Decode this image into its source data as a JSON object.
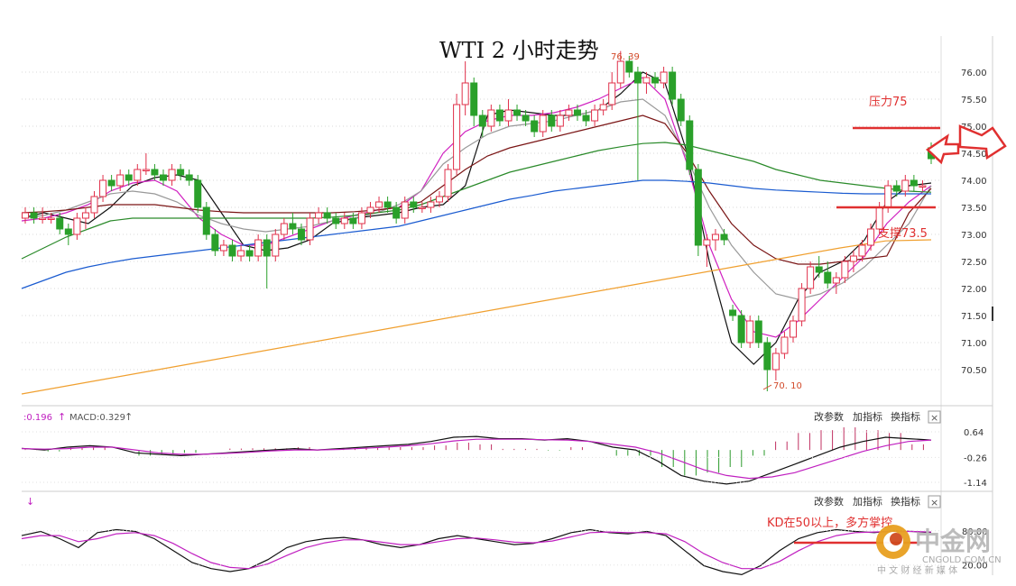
{
  "chart_data": {
    "type": "candlestick",
    "title": "WTI 2 小时走势",
    "price_axis": {
      "ylim": [
        70.0,
        76.6
      ],
      "ticks": [
        "76.00",
        "75.50",
        "75.00",
        "74.50",
        "74.00",
        "73.50",
        "73.00",
        "72.50",
        "72.00",
        "71.50",
        "71.00",
        "70.50"
      ]
    },
    "extremes": {
      "high_label": "76. 39",
      "high_value": 76.39,
      "low_label": "70. 10",
      "low_value": 70.1
    },
    "candles": [
      [
        73.3,
        73.5,
        73.2,
        73.4
      ],
      [
        73.4,
        73.5,
        73.2,
        73.3
      ],
      [
        73.3,
        73.5,
        73.2,
        73.3
      ],
      [
        73.3,
        73.4,
        73.2,
        73.3
      ],
      [
        73.3,
        73.4,
        73.0,
        73.1
      ],
      [
        73.1,
        73.2,
        72.8,
        73.0
      ],
      [
        73.0,
        73.4,
        72.9,
        73.3
      ],
      [
        73.3,
        73.5,
        73.1,
        73.4
      ],
      [
        73.4,
        73.8,
        73.3,
        73.7
      ],
      [
        73.7,
        74.1,
        73.6,
        74.0
      ],
      [
        74.0,
        74.1,
        73.8,
        73.9
      ],
      [
        73.9,
        74.2,
        73.8,
        74.1
      ],
      [
        74.1,
        74.2,
        73.9,
        74.0
      ],
      [
        74.0,
        74.3,
        73.9,
        74.2
      ],
      [
        74.2,
        74.5,
        74.1,
        74.2
      ],
      [
        74.2,
        74.3,
        74.0,
        74.1
      ],
      [
        74.1,
        74.2,
        73.9,
        74.0
      ],
      [
        74.0,
        74.3,
        73.9,
        74.2
      ],
      [
        74.2,
        74.3,
        74.0,
        74.1
      ],
      [
        74.1,
        74.2,
        73.9,
        74.0
      ],
      [
        74.0,
        74.1,
        73.4,
        73.5
      ],
      [
        73.5,
        73.6,
        72.9,
        73.0
      ],
      [
        73.0,
        73.1,
        72.6,
        72.7
      ],
      [
        72.7,
        72.9,
        72.6,
        72.8
      ],
      [
        72.8,
        72.9,
        72.5,
        72.6
      ],
      [
        72.6,
        72.8,
        72.5,
        72.7
      ],
      [
        72.7,
        72.8,
        72.5,
        72.6
      ],
      [
        72.6,
        73.0,
        72.5,
        72.9
      ],
      [
        72.9,
        73.0,
        72.0,
        72.6
      ],
      [
        72.6,
        73.1,
        72.5,
        73.0
      ],
      [
        73.0,
        73.3,
        72.9,
        73.2
      ],
      [
        73.2,
        73.4,
        73.0,
        73.1
      ],
      [
        73.1,
        73.2,
        72.8,
        72.9
      ],
      [
        72.9,
        73.4,
        72.8,
        73.3
      ],
      [
        73.3,
        73.5,
        73.2,
        73.4
      ],
      [
        73.4,
        73.5,
        73.2,
        73.3
      ],
      [
        73.3,
        73.4,
        73.1,
        73.2
      ],
      [
        73.2,
        73.4,
        73.1,
        73.3
      ],
      [
        73.3,
        73.4,
        73.1,
        73.2
      ],
      [
        73.2,
        73.5,
        73.1,
        73.4
      ],
      [
        73.4,
        73.6,
        73.3,
        73.5
      ],
      [
        73.5,
        73.7,
        73.4,
        73.6
      ],
      [
        73.6,
        73.7,
        73.4,
        73.5
      ],
      [
        73.5,
        73.6,
        73.2,
        73.3
      ],
      [
        73.3,
        73.7,
        73.2,
        73.6
      ],
      [
        73.6,
        73.7,
        73.4,
        73.5
      ],
      [
        73.5,
        73.6,
        73.4,
        73.5
      ],
      [
        73.5,
        73.7,
        73.4,
        73.6
      ],
      [
        73.6,
        73.8,
        73.5,
        73.7
      ],
      [
        73.7,
        74.3,
        73.6,
        74.2
      ],
      [
        74.2,
        75.6,
        74.1,
        75.4
      ],
      [
        75.4,
        76.2,
        75.2,
        75.8
      ],
      [
        75.8,
        75.9,
        75.0,
        75.2
      ],
      [
        75.2,
        75.3,
        74.8,
        75.0
      ],
      [
        75.0,
        75.4,
        74.9,
        75.3
      ],
      [
        75.3,
        75.4,
        75.0,
        75.1
      ],
      [
        75.1,
        75.5,
        75.0,
        75.3
      ],
      [
        75.3,
        75.4,
        75.1,
        75.2
      ],
      [
        75.2,
        75.3,
        75.0,
        75.1
      ],
      [
        75.1,
        75.2,
        74.8,
        74.9
      ],
      [
        74.9,
        75.3,
        74.8,
        75.2
      ],
      [
        75.2,
        75.3,
        74.9,
        75.0
      ],
      [
        75.0,
        75.3,
        74.9,
        75.2
      ],
      [
        75.2,
        75.4,
        75.1,
        75.3
      ],
      [
        75.3,
        75.4,
        75.1,
        75.2
      ],
      [
        75.2,
        75.3,
        75.0,
        75.1
      ],
      [
        75.1,
        75.4,
        75.0,
        75.3
      ],
      [
        75.3,
        75.5,
        75.2,
        75.4
      ],
      [
        75.4,
        76.0,
        75.3,
        75.8
      ],
      [
        75.8,
        76.39,
        75.7,
        76.2
      ],
      [
        76.2,
        76.3,
        75.9,
        76.0
      ],
      [
        76.0,
        76.1,
        74.0,
        75.8
      ],
      [
        75.8,
        76.0,
        75.6,
        75.9
      ],
      [
        75.9,
        76.0,
        75.7,
        75.8
      ],
      [
        75.8,
        76.1,
        75.7,
        76.0
      ],
      [
        76.0,
        76.1,
        75.4,
        75.5
      ],
      [
        75.5,
        75.6,
        75.0,
        75.1
      ],
      [
        75.1,
        75.2,
        74.1,
        74.2
      ],
      [
        74.2,
        74.3,
        72.6,
        72.8
      ],
      [
        72.8,
        73.0,
        72.4,
        72.9
      ],
      [
        72.9,
        73.1,
        72.7,
        73.0
      ],
      [
        73.0,
        73.1,
        72.8,
        72.9
      ],
      [
        71.6,
        71.7,
        71.4,
        71.5
      ],
      [
        71.5,
        71.6,
        70.9,
        71.0
      ],
      [
        71.0,
        71.5,
        70.9,
        71.4
      ],
      [
        71.4,
        71.5,
        70.9,
        71.0
      ],
      [
        71.0,
        71.1,
        70.1,
        70.5
      ],
      [
        70.5,
        70.9,
        70.3,
        70.8
      ],
      [
        70.8,
        71.2,
        70.7,
        71.1
      ],
      [
        71.1,
        71.5,
        71.0,
        71.4
      ],
      [
        71.4,
        72.1,
        71.3,
        72.0
      ],
      [
        72.0,
        72.5,
        71.9,
        72.4
      ],
      [
        72.4,
        72.6,
        72.2,
        72.3
      ],
      [
        72.3,
        72.5,
        72.0,
        72.1
      ],
      [
        72.1,
        72.3,
        71.9,
        72.2
      ],
      [
        72.2,
        72.6,
        72.1,
        72.5
      ],
      [
        72.5,
        72.7,
        72.3,
        72.6
      ],
      [
        72.6,
        72.9,
        72.5,
        72.8
      ],
      [
        72.8,
        73.2,
        72.7,
        73.1
      ],
      [
        73.1,
        73.6,
        73.0,
        73.5
      ],
      [
        73.5,
        74.0,
        73.4,
        73.9
      ],
      [
        73.9,
        74.0,
        73.7,
        73.8
      ],
      [
        73.8,
        74.1,
        73.7,
        74.0
      ],
      [
        74.0,
        74.1,
        73.8,
        73.9
      ],
      [
        73.9,
        74.0,
        73.8,
        73.9
      ],
      [
        74.6,
        74.7,
        74.3,
        74.4
      ]
    ],
    "overlays": [
      {
        "color": "#111111",
        "values": [
          73.3,
          73.4,
          73.3,
          73.2,
          73.5,
          73.9,
          74.05,
          74.1,
          74.0,
          73.4,
          72.8,
          72.7,
          72.75,
          72.9,
          73.2,
          73.3,
          73.35,
          73.4,
          73.5,
          73.55,
          73.9,
          75.2,
          75.3,
          75.25,
          75.2,
          75.2,
          75.3,
          75.6,
          76.0,
          75.8,
          74.5,
          72.5,
          71.0,
          70.6,
          71.0,
          71.8,
          72.3,
          72.5,
          72.9,
          73.6,
          73.9,
          73.95
        ]
      },
      {
        "color": "#d020c0",
        "values": [
          73.25,
          73.3,
          73.4,
          73.55,
          73.8,
          73.95,
          74.0,
          73.8,
          73.3,
          73.0,
          72.8,
          72.8,
          72.95,
          73.1,
          73.25,
          73.35,
          73.45,
          73.5,
          73.8,
          74.5,
          74.9,
          75.1,
          75.2,
          75.2,
          75.25,
          75.35,
          75.5,
          75.7,
          75.9,
          75.5,
          74.3,
          72.8,
          71.8,
          71.2,
          71.1,
          71.4,
          71.8,
          72.2,
          72.6,
          73.2,
          73.6,
          73.9
        ]
      },
      {
        "color": "#999999",
        "values": [
          73.3,
          73.35,
          73.45,
          73.6,
          73.75,
          73.8,
          73.75,
          73.6,
          73.35,
          73.2,
          73.1,
          73.05,
          73.1,
          73.15,
          73.25,
          73.3,
          73.4,
          73.55,
          73.8,
          74.3,
          74.6,
          74.85,
          75.0,
          75.05,
          75.1,
          75.2,
          75.3,
          75.45,
          75.5,
          75.2,
          74.4,
          73.5,
          72.8,
          72.3,
          71.9,
          71.8,
          71.9,
          72.1,
          72.4,
          72.8,
          73.2,
          73.9
        ]
      },
      {
        "color": "#7a1515",
        "values": [
          73.4,
          73.42,
          73.45,
          73.5,
          73.55,
          73.55,
          73.55,
          73.5,
          73.45,
          73.42,
          73.4,
          73.4,
          73.4,
          73.4,
          73.4,
          73.42,
          73.45,
          73.5,
          73.6,
          73.9,
          74.2,
          74.45,
          74.6,
          74.7,
          74.8,
          74.9,
          75.0,
          75.1,
          75.2,
          75.05,
          74.5,
          73.8,
          73.2,
          72.8,
          72.55,
          72.45,
          72.45,
          72.5,
          72.55,
          72.6,
          73.4,
          73.85
        ]
      },
      {
        "color": "#2a8a2a",
        "values": [
          72.55,
          72.75,
          72.95,
          73.1,
          73.25,
          73.3,
          73.3,
          73.3,
          73.3,
          73.3,
          73.3,
          73.3,
          73.3,
          73.3,
          73.32,
          73.35,
          73.4,
          73.45,
          73.55,
          73.7,
          73.85,
          74.0,
          74.15,
          74.25,
          74.35,
          74.45,
          74.55,
          74.62,
          74.68,
          74.7,
          74.65,
          74.55,
          74.45,
          74.35,
          74.2,
          74.1,
          74.0,
          73.95,
          73.9,
          73.85,
          73.8,
          73.78
        ]
      },
      {
        "color": "#1a5bd0",
        "values": [
          72.0,
          72.15,
          72.3,
          72.4,
          72.48,
          72.55,
          72.6,
          72.65,
          72.7,
          72.75,
          72.8,
          72.85,
          72.9,
          72.95,
          73.0,
          73.05,
          73.1,
          73.15,
          73.25,
          73.35,
          73.45,
          73.55,
          73.65,
          73.72,
          73.8,
          73.85,
          73.9,
          73.95,
          74.0,
          74.0,
          73.98,
          73.95,
          73.9,
          73.85,
          73.82,
          73.8,
          73.78,
          73.76,
          73.75,
          73.75,
          73.75,
          73.75
        ]
      },
      {
        "color": "#f0a030",
        "values": [
          70.05,
          70.2,
          70.35,
          70.5,
          70.65,
          70.8,
          70.95,
          71.1,
          71.25,
          71.4,
          71.55,
          71.7,
          71.85,
          72.0,
          72.15,
          72.3,
          72.45,
          72.6,
          72.75,
          72.88,
          72.9
        ]
      }
    ],
    "annotations": [
      {
        "label": "压力75",
        "value": 75.0,
        "kind": "resistance"
      },
      {
        "label": "支撑73.5",
        "value": 73.5,
        "kind": "support"
      }
    ],
    "macd": {
      "header_left": ":0.196",
      "header_macd": "MACD:0.329",
      "ylim": [
        -1.3,
        0.8
      ],
      "ticks": [
        "0.64",
        "-0.26",
        "-1.14"
      ],
      "dif": [
        0.06,
        0.0,
        0.1,
        0.15,
        0.1,
        -0.1,
        -0.15,
        -0.2,
        -0.15,
        -0.1,
        -0.05,
        0.0,
        0.05,
        0.0,
        0.05,
        0.1,
        0.15,
        0.2,
        0.3,
        0.45,
        0.48,
        0.4,
        0.4,
        0.35,
        0.4,
        0.3,
        0.1,
        0.0,
        -0.4,
        -0.9,
        -1.1,
        -1.2,
        -1.1,
        -0.8,
        -0.5,
        -0.2,
        0.1,
        0.3,
        0.45,
        0.4,
        0.35
      ],
      "dea": [
        0.05,
        0.03,
        0.05,
        0.1,
        0.1,
        0.0,
        -0.1,
        -0.15,
        -0.15,
        -0.12,
        -0.08,
        -0.03,
        0.0,
        0.0,
        0.02,
        0.06,
        0.1,
        0.15,
        0.22,
        0.32,
        0.38,
        0.38,
        0.38,
        0.36,
        0.35,
        0.3,
        0.2,
        0.1,
        -0.1,
        -0.4,
        -0.7,
        -0.9,
        -1.0,
        -0.95,
        -0.8,
        -0.55,
        -0.3,
        -0.05,
        0.15,
        0.3,
        0.35
      ],
      "hist": [
        0.02,
        -0.05,
        0.08,
        0.1,
        0.0,
        -0.2,
        -0.15,
        -0.1,
        0.0,
        0.05,
        0.06,
        0.06,
        0.1,
        0.0,
        0.06,
        0.08,
        0.1,
        0.1,
        0.16,
        0.26,
        0.2,
        0.04,
        0.04,
        -0.02,
        0.1,
        0.0,
        -0.2,
        -0.2,
        -0.6,
        -0.9,
        -0.8,
        -0.6,
        -0.2,
        0.3,
        0.6,
        0.7,
        0.8,
        0.7,
        0.6,
        0.2,
        0.0
      ]
    },
    "kd": {
      "ylim": [
        0,
        100
      ],
      "ticks": [
        "80.00",
        "20.00"
      ],
      "k": [
        75,
        82,
        70,
        55,
        80,
        85,
        82,
        70,
        50,
        30,
        20,
        15,
        20,
        35,
        55,
        65,
        70,
        72,
        68,
        60,
        55,
        60,
        70,
        75,
        70,
        65,
        60,
        62,
        70,
        80,
        85,
        80,
        78,
        82,
        75,
        50,
        25,
        15,
        10,
        25,
        50,
        70,
        80,
        85,
        82,
        80,
        83,
        82,
        80
      ],
      "d": [
        70,
        75,
        75,
        65,
        70,
        78,
        80,
        75,
        62,
        45,
        30,
        22,
        20,
        28,
        42,
        55,
        63,
        68,
        68,
        64,
        60,
        60,
        65,
        70,
        71,
        68,
        64,
        63,
        66,
        73,
        80,
        81,
        80,
        80,
        78,
        65,
        45,
        30,
        20,
        20,
        32,
        50,
        65,
        75,
        80,
        81,
        82,
        82,
        81
      ],
      "annotation": "KD在50以上，多方掌控"
    },
    "toolbar": {
      "items": [
        "改参数",
        "加指标",
        "换指标"
      ],
      "close": "×"
    },
    "watermark": {
      "brand": "中金网",
      "site": "CNGOLD.COM.CN",
      "slogan": "中 文 财 经 新 媒 体"
    },
    "colors": {
      "up": "#e0304a",
      "down": "#2aa02a",
      "annotation": "#e03030"
    }
  }
}
